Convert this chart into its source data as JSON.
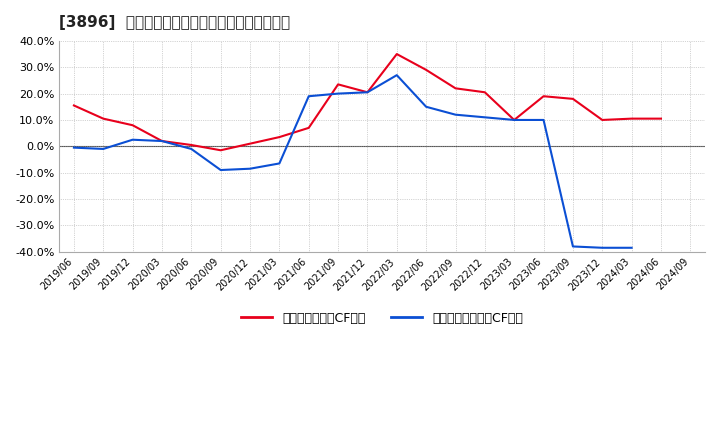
{
  "title": "[3896]  有利子負債キャッシュフロー比率の推移",
  "x_labels": [
    "2019/06",
    "2019/09",
    "2019/12",
    "2020/03",
    "2020/06",
    "2020/09",
    "2020/12",
    "2021/03",
    "2021/06",
    "2021/09",
    "2021/12",
    "2022/03",
    "2022/06",
    "2022/09",
    "2022/12",
    "2023/03",
    "2023/06",
    "2023/09",
    "2023/12",
    "2024/03",
    "2024/06",
    "2024/09"
  ],
  "red_values": [
    15.5,
    10.5,
    8.0,
    2.0,
    0.5,
    -1.5,
    1.0,
    3.5,
    7.0,
    23.5,
    20.5,
    35.0,
    29.0,
    22.0,
    20.5,
    10.0,
    19.0,
    18.0,
    10.0,
    10.5,
    10.5,
    null
  ],
  "blue_values": [
    -0.5,
    -1.0,
    2.5,
    2.0,
    -1.0,
    -9.0,
    -8.5,
    -6.5,
    19.0,
    20.0,
    20.5,
    27.0,
    15.0,
    12.0,
    11.0,
    10.0,
    10.0,
    -38.0,
    -38.5,
    -38.5,
    null,
    null
  ],
  "red_color": "#e8001c",
  "blue_color": "#0b4fd4",
  "bg_color": "#ffffff",
  "plot_bg_color": "#ffffff",
  "grid_color": "#aaaaaa",
  "ylim": [
    -40,
    40
  ],
  "yticks": [
    -40,
    -30,
    -20,
    -10,
    0,
    10,
    20,
    30,
    40
  ],
  "legend_red": "有利子負債営業CF比率",
  "legend_blue": "有利子負債フリーCF比率"
}
